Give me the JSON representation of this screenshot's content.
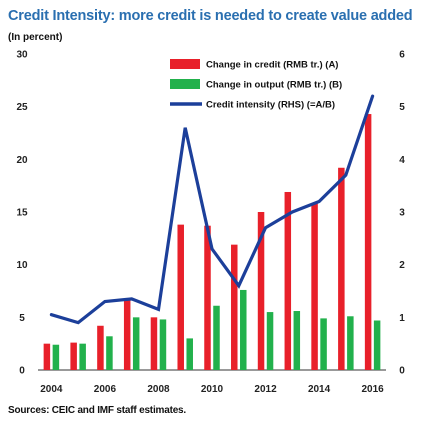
{
  "header": {
    "title": "Credit Intensity: more credit is needed to create value added",
    "subtitle": "(In percent)"
  },
  "footer": {
    "source": "Sources: CEIC and IMF staff estimates."
  },
  "chart_data": {
    "type": "bar",
    "x": [
      2004,
      2005,
      2006,
      2007,
      2008,
      2009,
      2010,
      2011,
      2012,
      2013,
      2014,
      2015,
      2016
    ],
    "x_tick_labels": [
      "2004",
      "2006",
      "2008",
      "2010",
      "2012",
      "2014",
      "2016"
    ],
    "series": [
      {
        "name": "Change in credit (RMB tr.) (A)",
        "type": "bar",
        "axis": "left",
        "color": "#e8202a",
        "values": [
          2.5,
          2.6,
          4.2,
          6.8,
          5.0,
          13.8,
          13.7,
          11.9,
          15.0,
          16.9,
          15.8,
          19.2,
          24.3
        ]
      },
      {
        "name": "Change in output (RMB tr.) (B)",
        "type": "bar",
        "axis": "left",
        "color": "#22b14c",
        "values": [
          2.4,
          2.5,
          3.2,
          5.0,
          4.8,
          3.0,
          6.1,
          7.6,
          5.5,
          5.6,
          4.9,
          5.1,
          4.7
        ]
      },
      {
        "name": "Credit intensity (RHS) (=A/B)",
        "type": "line",
        "axis": "right",
        "color": "#1c3f9a",
        "values": [
          1.05,
          0.9,
          1.3,
          1.35,
          1.15,
          4.6,
          2.3,
          1.6,
          2.7,
          3.0,
          3.2,
          3.7,
          5.2
        ]
      }
    ],
    "y_left": {
      "min": 0,
      "max": 30,
      "ticks": [
        0,
        5,
        10,
        15,
        20,
        25,
        30
      ]
    },
    "y_right": {
      "min": 0,
      "max": 6,
      "ticks": [
        0,
        1,
        2,
        3,
        4,
        5,
        6
      ]
    },
    "legend_position": "top-right",
    "grid": false
  }
}
